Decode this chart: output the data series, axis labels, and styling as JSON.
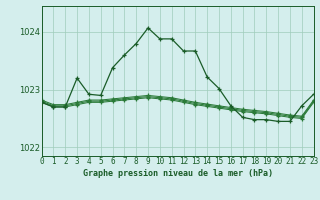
{
  "title": "Graphe pression niveau de la mer (hPa)",
  "background_color": "#d4eeed",
  "grid_color_major": "#a0ccbb",
  "grid_color_minor": "#c0ddd4",
  "line_color_dark": "#1a5c28",
  "line_color_mid": "#2a7a38",
  "xlim": [
    0,
    23
  ],
  "ylim": [
    1021.85,
    1024.45
  ],
  "yticks": [
    1022,
    1023,
    1024
  ],
  "xticks": [
    0,
    1,
    2,
    3,
    4,
    5,
    6,
    7,
    8,
    9,
    10,
    11,
    12,
    13,
    14,
    15,
    16,
    17,
    18,
    19,
    20,
    21,
    22,
    23
  ],
  "main_y": [
    1022.78,
    1022.7,
    1022.7,
    1023.2,
    1022.92,
    1022.9,
    1023.38,
    1023.6,
    1023.8,
    1024.07,
    1023.88,
    1023.88,
    1023.67,
    1023.67,
    1023.22,
    1023.02,
    1022.72,
    1022.52,
    1022.48,
    1022.48,
    1022.45,
    1022.45,
    1022.72,
    1022.92
  ],
  "flat1_y": [
    1022.78,
    1022.7,
    1022.7,
    1022.74,
    1022.78,
    1022.78,
    1022.8,
    1022.82,
    1022.84,
    1022.86,
    1022.84,
    1022.82,
    1022.78,
    1022.74,
    1022.71,
    1022.68,
    1022.65,
    1022.62,
    1022.6,
    1022.58,
    1022.55,
    1022.52,
    1022.5,
    1022.78
  ],
  "flat2_y": [
    1022.8,
    1022.72,
    1022.72,
    1022.76,
    1022.8,
    1022.8,
    1022.82,
    1022.84,
    1022.86,
    1022.88,
    1022.86,
    1022.84,
    1022.8,
    1022.76,
    1022.73,
    1022.7,
    1022.67,
    1022.64,
    1022.62,
    1022.6,
    1022.57,
    1022.54,
    1022.52,
    1022.8
  ],
  "flat3_y": [
    1022.82,
    1022.74,
    1022.74,
    1022.78,
    1022.82,
    1022.82,
    1022.84,
    1022.86,
    1022.88,
    1022.9,
    1022.88,
    1022.86,
    1022.82,
    1022.78,
    1022.75,
    1022.72,
    1022.69,
    1022.66,
    1022.64,
    1022.62,
    1022.59,
    1022.56,
    1022.54,
    1022.82
  ],
  "title_fontsize": 6.0,
  "tick_fontsize": 5.5,
  "ytick_fontsize": 6.0
}
